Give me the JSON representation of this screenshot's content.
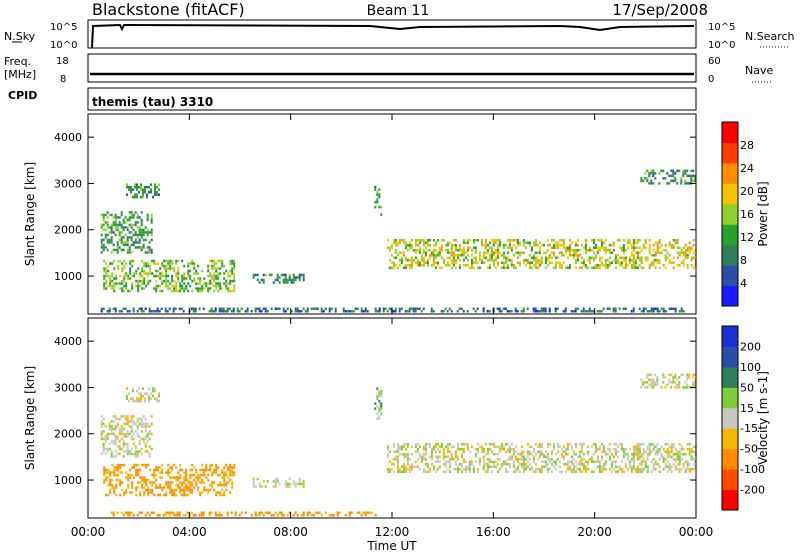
{
  "header": {
    "station": "Blackstone (fitACF)",
    "beam": "Beam 11",
    "date": "17/Sep/2008"
  },
  "summary_panels": {
    "nsky": {
      "left_label": "N.Sky",
      "right_label": "N.Search",
      "left_ticks": [
        "10^5",
        "10^0"
      ],
      "right_ticks": [
        "10^5",
        "10^0"
      ]
    },
    "freq": {
      "left_label_1": "Freq.",
      "left_label_2": "[MHz]",
      "right_label": "Nave",
      "left_ticks": [
        "18",
        "8"
      ],
      "right_ticks": [
        "60",
        "0"
      ]
    },
    "cpid": {
      "label": "CPID",
      "text": "themis (tau) 3310"
    }
  },
  "colors": {
    "power_scale": [
      "#1a1aff",
      "#2a4fa8",
      "#2f7f5a",
      "#2aa02a",
      "#8fd12a",
      "#f5c400",
      "#ff8c00",
      "#ff3c00",
      "#ff0000"
    ],
    "velocity_scale": [
      "#1a2fd6",
      "#2a4fa8",
      "#2f7f5a",
      "#7ccf3a",
      "#c8c8c0",
      "#f5b800",
      "#ff8c00",
      "#ff4a00",
      "#ff0000"
    ]
  },
  "chart_data": [
    {
      "type": "heatmap",
      "title": "",
      "panel": "power",
      "xlabel": "Time UT",
      "ylabel": "Slant Range [km]",
      "x_ticks": [
        "00:00",
        "04:00",
        "08:00",
        "12:00",
        "16:00",
        "20:00",
        "00:00"
      ],
      "xlim_hours": [
        0,
        24
      ],
      "y_ticks": [
        1000,
        2000,
        3000,
        4000
      ],
      "ylim": [
        180,
        4500
      ],
      "colorbar_label": "Power [dB]",
      "colorbar_ticks": [
        "28",
        "24",
        "20",
        "16",
        "12",
        "8",
        "4"
      ],
      "colorbar_range": [
        0,
        30
      ],
      "regions": [
        {
          "t0": 0.6,
          "t1": 5.8,
          "r0": 700,
          "r1": 1350,
          "level": 0.45
        },
        {
          "t0": 0.5,
          "t1": 2.5,
          "r0": 1500,
          "r1": 2400,
          "level": 0.35
        },
        {
          "t0": 1.5,
          "t1": 2.8,
          "r0": 2700,
          "r1": 3000,
          "level": 0.3
        },
        {
          "t0": 6.5,
          "t1": 8.5,
          "r0": 850,
          "r1": 1050,
          "level": 0.3
        },
        {
          "t0": 11.3,
          "t1": 11.6,
          "r0": 2300,
          "r1": 3000,
          "level": 0.3
        },
        {
          "t0": 11.8,
          "t1": 21.8,
          "r0": 1200,
          "r1": 1800,
          "level": 0.55
        },
        {
          "t0": 21.5,
          "t1": 24.0,
          "r0": 1200,
          "r1": 1800,
          "level": 0.6
        },
        {
          "t0": 21.8,
          "t1": 24.0,
          "r0": 3000,
          "r1": 3300,
          "level": 0.3
        },
        {
          "t0": 0.5,
          "t1": 23.5,
          "r0": 220,
          "r1": 320,
          "level": 0.2
        }
      ]
    },
    {
      "type": "heatmap",
      "title": "",
      "panel": "velocity",
      "xlabel": "Time UT",
      "ylabel": "Slant Range [km]",
      "x_ticks": [
        "00:00",
        "04:00",
        "08:00",
        "12:00",
        "16:00",
        "20:00",
        "00:00"
      ],
      "xlim_hours": [
        0,
        24
      ],
      "y_ticks": [
        1000,
        2000,
        3000,
        4000
      ],
      "ylim": [
        180,
        4500
      ],
      "colorbar_label": "Velocity [m s-1]",
      "colorbar_ticks": [
        "200",
        "100",
        "50",
        "15",
        "-15",
        "-50",
        "-100",
        "-200"
      ],
      "colorbar_range": [
        -250,
        250
      ],
      "regions": [
        {
          "t0": 0.6,
          "t1": 5.8,
          "r0": 700,
          "r1": 1350,
          "level": -60
        },
        {
          "t0": 0.5,
          "t1": 2.5,
          "r0": 1500,
          "r1": 2400,
          "level": 0
        },
        {
          "t0": 1.5,
          "t1": 2.8,
          "r0": 2700,
          "r1": 3000,
          "level": 0
        },
        {
          "t0": 6.5,
          "t1": 8.5,
          "r0": 850,
          "r1": 1050,
          "level": 0
        },
        {
          "t0": 11.3,
          "t1": 11.6,
          "r0": 2300,
          "r1": 3000,
          "level": 30
        },
        {
          "t0": 11.8,
          "t1": 21.8,
          "r0": 1200,
          "r1": 1800,
          "level": 0
        },
        {
          "t0": 21.5,
          "t1": 24.0,
          "r0": 1200,
          "r1": 1800,
          "level": 0
        },
        {
          "t0": 21.8,
          "t1": 24.0,
          "r0": 3000,
          "r1": 3300,
          "level": 0
        },
        {
          "t0": 0.5,
          "t1": 11.5,
          "r0": 220,
          "r1": 320,
          "level": -60
        }
      ]
    }
  ]
}
